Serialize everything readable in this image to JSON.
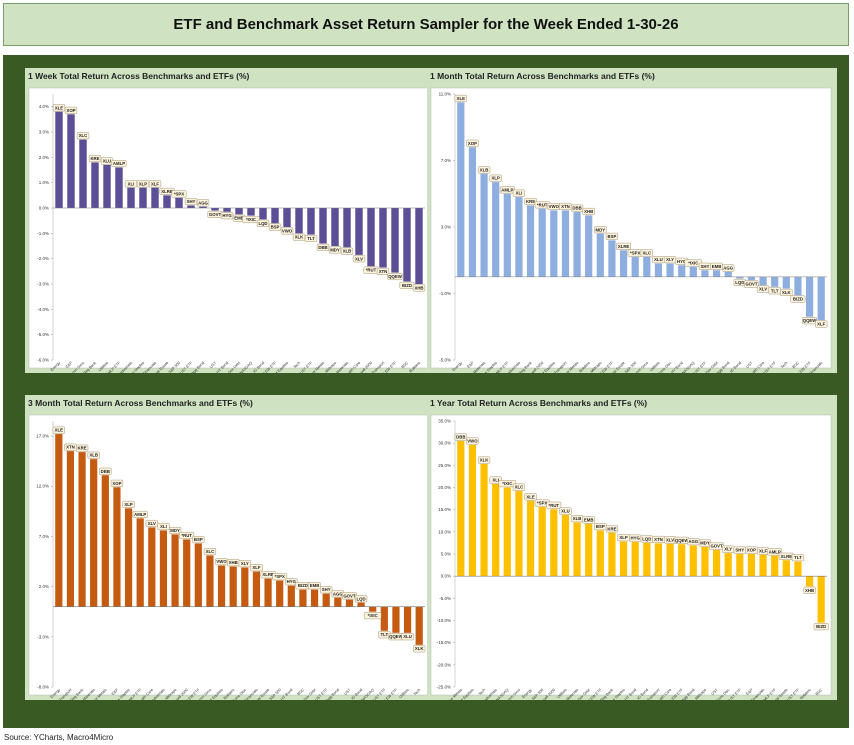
{
  "title": "ETF and Benchmark Asset Return Sampler for the Week Ended 1-30-26",
  "source": "Source: YCharts, Macro4Micro",
  "colors": {
    "frame": "#3a5a24",
    "panel_bg": "#cfe3c2",
    "label_bg": "#fdf3dc",
    "label_border": "#8a7a5a"
  },
  "chart_data": [
    {
      "id": "week",
      "type": "bar",
      "title": "1 Week Total Return Across Benchmarks and ETFs (%)",
      "color": "#5c4f96",
      "ylim": [
        -6,
        4.5
      ],
      "yticks": [
        -6,
        -5,
        -4,
        -3,
        -2,
        -1,
        0,
        1,
        2,
        3,
        4
      ],
      "ytick_labels": [
        "-6.0%",
        "-5.0%",
        "-4.0%",
        "-3.0%",
        "-2.0%",
        "-1.0%",
        "0.0%",
        "1.0%",
        "2.0%",
        "3.0%",
        "4.0%"
      ],
      "labels": [
        "XLE",
        "XOP",
        "XLC",
        "KRE",
        "XLU",
        "AMLP",
        "XLI",
        "XLP",
        "XLF",
        "XLRE",
        "*SPX",
        "SHY",
        "AGG",
        "GOVT",
        "HYG",
        "EMB",
        "*IXIC",
        "LQD",
        "BSP",
        "VWO",
        "XLK",
        "TLT",
        "DBB",
        "MDY",
        "XLB",
        "XLV",
        "*RUT",
        "XTN",
        "QQEW",
        "BIZD",
        "XHB"
      ],
      "categories": [
        "Energy",
        "E&P",
        "Comm Svcs",
        "Reg Bank",
        "Utilities",
        "MLP ETF",
        "Industrials",
        "Cons Staples",
        "Financials",
        "Real Estate",
        "S&P 500",
        "1-3Y UST ETF",
        "Agg Bond",
        "UST",
        "HY Bond",
        "EM Sov Debt",
        "NASDAQ",
        "IG Bond",
        "S&P EW ETF",
        "EM Equities",
        "Tech",
        "20+Y UST ETF",
        "Base Metals",
        "Midcaps",
        "Materials",
        "Health Care",
        "Russell 2000",
        "Transport",
        "NASD EW ETF",
        "BDC",
        "Builders"
      ],
      "values": [
        3.8,
        3.7,
        2.7,
        1.8,
        1.7,
        1.6,
        0.8,
        0.8,
        0.8,
        0.5,
        0.4,
        0.1,
        0.05,
        -0.1,
        -0.15,
        -0.25,
        -0.3,
        -0.45,
        -0.6,
        -0.75,
        -1.0,
        -1.05,
        -1.4,
        -1.5,
        -1.55,
        -1.85,
        -2.3,
        -2.35,
        -2.55,
        -2.9,
        -3.0
      ]
    },
    {
      "id": "month",
      "type": "bar",
      "title": "1 Month Total Return Across Benchmarks and ETFs (%)",
      "color": "#8faee0",
      "ylim": [
        -5,
        11
      ],
      "yticks": [
        -5,
        -1,
        3,
        7,
        11
      ],
      "ytick_labels": [
        "-5.0%",
        "-1.0%",
        "3.0%",
        "7.0%",
        "11.0%"
      ],
      "labels": [
        "XLE",
        "XOP",
        "XLB",
        "XLP",
        "AMLP",
        "XLI",
        "KRE",
        "*RUT",
        "VWO",
        "XTN",
        "DBB",
        "XHB",
        "MDY",
        "BSP",
        "XLRE",
        "*SPX",
        "XLC",
        "XLU",
        "XLY",
        "HYG",
        "*IXIC",
        "SHY",
        "EMB",
        "AGG",
        "LQD",
        "GOVT",
        "XLV",
        "TLT",
        "XLK",
        "BIZD",
        "QQEW",
        "XLF"
      ],
      "categories": [
        "Energy",
        "E&P",
        "Materials",
        "Cons Staples",
        "MLP ETF",
        "Industrials",
        "Reg Bank",
        "Russell 2000",
        "EM Equities",
        "Transport",
        "Base Metals",
        "Builders",
        "Midcaps",
        "S&P EW ETF",
        "Real Estate",
        "S&P 500",
        "Comm Svcs",
        "Utilities",
        "Cons Disc",
        "HY Bond",
        "NASDAQ",
        "1-3Y UST ETF",
        "EM Sov Debt",
        "Agg Bond",
        "IG Bond",
        "UST",
        "Health Care",
        "20+Y UST ETF",
        "Tech",
        "BDC",
        "NASD EW ETF",
        "Financials"
      ],
      "values": [
        10.5,
        7.8,
        6.2,
        5.7,
        5.0,
        4.8,
        4.3,
        4.1,
        4.0,
        4.0,
        3.9,
        3.7,
        2.6,
        2.2,
        1.6,
        1.2,
        1.2,
        0.8,
        0.8,
        0.7,
        0.6,
        0.4,
        0.4,
        0.3,
        -0.1,
        -0.2,
        -0.5,
        -0.6,
        -0.7,
        -1.1,
        -2.4,
        -2.6
      ]
    },
    {
      "id": "threemonth",
      "type": "bar",
      "title": "3 Month Total Return Across Benchmarks and ETFs (%)",
      "color": "#c55a11",
      "ylim": [
        -8,
        18.5
      ],
      "yticks": [
        -8,
        -3,
        2,
        7,
        12,
        17
      ],
      "ytick_labels": [
        "-8.0%",
        "-3.0%",
        "2.0%",
        "7.0%",
        "12.0%",
        "17.0%"
      ],
      "labels": [
        "XLE",
        "XTN",
        "KRE",
        "XLB",
        "DBB",
        "XOP",
        "XLP",
        "AMLP",
        "XLV",
        "XLI",
        "MDY",
        "*RUT",
        "BSP",
        "XLC",
        "VWO",
        "XHB",
        "XLY",
        "XLF",
        "XLRE",
        "*SPX",
        "HYG",
        "BIZD",
        "EMB",
        "SHY",
        "AGG",
        "GOVT",
        "LQD",
        "*IXIC",
        "TLT",
        "QQEW",
        "XLU",
        "XLK"
      ],
      "categories": [
        "Energy",
        "Transport",
        "Reg Bank",
        "Materials",
        "Base Metals",
        "E&P",
        "Cons Staples",
        "MLP ETF",
        "Health Care",
        "Industrials",
        "Midcaps",
        "Russell 2000",
        "S&P EW ETF",
        "Comm Svcs",
        "EM Equities",
        "Builders",
        "Cons Disc",
        "Financials",
        "Real Estate",
        "S&P 500",
        "HY Bond",
        "BDC",
        "EM Sov Debt",
        "1-3Y UST ETF",
        "Agg Bond",
        "UST",
        "IG Bond",
        "NASDAQ",
        "20+Y UST ETF",
        "NASD EW ETF",
        "Utilities",
        "Tech"
      ],
      "values": [
        17.2,
        15.5,
        15.4,
        14.7,
        13.1,
        11.9,
        9.8,
        8.8,
        7.9,
        7.6,
        7.2,
        6.7,
        6.3,
        5.1,
        4.1,
        4.0,
        3.9,
        3.5,
        2.8,
        2.6,
        2.1,
        1.7,
        1.7,
        1.3,
        0.9,
        0.7,
        0.4,
        -0.5,
        -2.4,
        -2.6,
        -2.6,
        -3.8
      ]
    },
    {
      "id": "year",
      "type": "bar",
      "title": "1 Year Total Return Across Benchmarks and ETFs (%)",
      "color": "#ffc000",
      "ylim": [
        -25,
        35
      ],
      "yticks": [
        -25,
        -20,
        -15,
        -10,
        -5,
        0,
        5,
        10,
        15,
        20,
        25,
        30,
        35
      ],
      "ytick_labels": [
        "-25.0%",
        "-20.0%",
        "-15.0%",
        "-10.0%",
        "-5.0%",
        "0.0%",
        "5.0%",
        "10.0%",
        "15.0%",
        "20.0%",
        "25.0%",
        "30.0%",
        "35.0%"
      ],
      "labels": [
        "DBB",
        "VWO",
        "XLK",
        "XLI",
        "*IXIC",
        "XLC",
        "XLE",
        "*SPX",
        "*RUT",
        "XLU",
        "XLB",
        "EMB",
        "BSP",
        "KRE",
        "XLP",
        "HYG",
        "LQD",
        "XTN",
        "XLV",
        "QQEW",
        "AGG",
        "MDY",
        "GOVT",
        "XLY",
        "SHY",
        "XOP",
        "XLF",
        "AMLP",
        "XLRE",
        "TLT",
        "XHB",
        "BIZD"
      ],
      "categories": [
        "Base Metals",
        "EM Equities",
        "Tech",
        "Industrials",
        "NASDAQ",
        "Comm Svcs",
        "Energy",
        "S&P 500",
        "Russell 2000",
        "Utilities",
        "Materials",
        "EM Sov Debt",
        "S&P EW ETF",
        "Reg Bank",
        "Cons Staples",
        "HY Bond",
        "IG Bond",
        "Transport",
        "Health Care",
        "NASD EW ETF",
        "Agg Bond",
        "Midcaps",
        "UST",
        "Cons Disc",
        "1-3Y UST ETF",
        "E&P",
        "Financials",
        "MLP ETF",
        "Real Estate",
        "20+Y UST ETF",
        "Builders",
        "BDC"
      ],
      "values": [
        30.5,
        29.6,
        25.3,
        20.8,
        20.0,
        19.2,
        17.0,
        15.6,
        15.1,
        13.8,
        12.1,
        11.8,
        10.3,
        9.8,
        7.8,
        7.7,
        7.5,
        7.4,
        7.3,
        7.2,
        6.9,
        6.6,
        5.9,
        5.2,
        5.0,
        5.0,
        4.8,
        4.6,
        3.6,
        3.3,
        -2.3,
        -10.5
      ]
    }
  ]
}
